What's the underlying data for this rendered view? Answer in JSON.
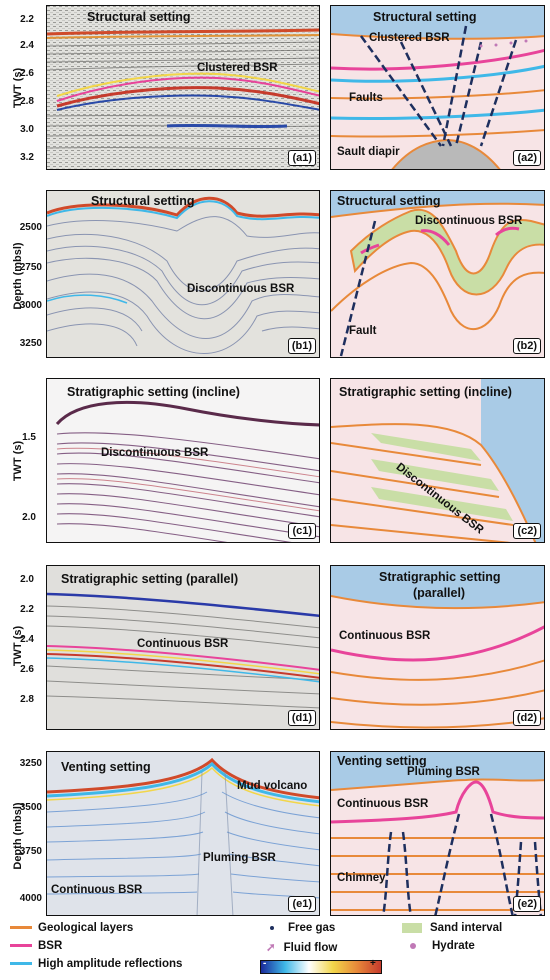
{
  "panels": {
    "a1": {
      "title": "Structural setting",
      "label": "(a1)",
      "anno": "Clustered BSR",
      "axis": "TWT (s)",
      "ticks": [
        "2.2",
        "2.4",
        "2.6",
        "2.8",
        "3.0",
        "3.2"
      ]
    },
    "a2": {
      "title": "Structural setting",
      "label": "(a2)",
      "anno1": "Clustered BSR",
      "anno2": "Faults",
      "anno3": "Sault diapir"
    },
    "b1": {
      "title": "Structural setting",
      "label": "(b1)",
      "anno": "Discontinuous BSR",
      "axis": "Depth (mbsl)",
      "ticks": [
        "2500",
        "2750",
        "3000",
        "3250"
      ]
    },
    "b2": {
      "title": "Structural setting",
      "label": "(b2)",
      "anno1": "Discontinuous BSR",
      "anno2": "Fault"
    },
    "c1": {
      "title": "Stratigraphic setting (incline)",
      "label": "(c1)",
      "anno": "Discontinuous BSR",
      "axis": "TWT (s)",
      "ticks": [
        "1.5",
        "2.0"
      ]
    },
    "c2": {
      "title": "Stratigraphic setting (incline)",
      "label": "(c2)",
      "anno1": "Discontinuous BSR"
    },
    "d1": {
      "title": "Stratigraphic setting (parallel)",
      "label": "(d1)",
      "anno": "Continuous BSR",
      "axis": "TWT (s)",
      "ticks": [
        "2.0",
        "2.2",
        "2.4",
        "2.6",
        "2.8"
      ]
    },
    "d2": {
      "title1": "Stratigraphic setting",
      "title2": "(parallel)",
      "label": "(d2)",
      "anno1": "Continuous BSR"
    },
    "e1": {
      "title": "Venting setting",
      "label": "(e1)",
      "anno1": "Mud volcano",
      "anno2": "Continuous BSR",
      "anno3": "Pluming BSR",
      "axis": "Depth (mbsl)",
      "ticks": [
        "3250",
        "3500",
        "3750",
        "4000"
      ]
    },
    "e2": {
      "title": "Venting setting",
      "label": "(e2)",
      "anno1": "Pluming BSR",
      "anno2": "Continuous BSR",
      "anno3": "Chimney"
    }
  },
  "legend": {
    "geo": "Geological layers",
    "bsr": "BSR",
    "hamp": "High amplitude reflections",
    "gas": "Free gas",
    "fluid": "Fluid flow",
    "sand": "Sand interval",
    "hydrate": "Hydrate",
    "cb_minus": "-",
    "cb_plus": "+"
  },
  "colors": {
    "geo": "#e8893a",
    "bsr": "#e8449a",
    "hamp": "#3fb8e8",
    "sea": "#a9cbe6",
    "sediment": "#f7e4e6",
    "sand": "#c9dea6",
    "gas": "#1e2f5e",
    "hydrate": "#c079b6"
  }
}
